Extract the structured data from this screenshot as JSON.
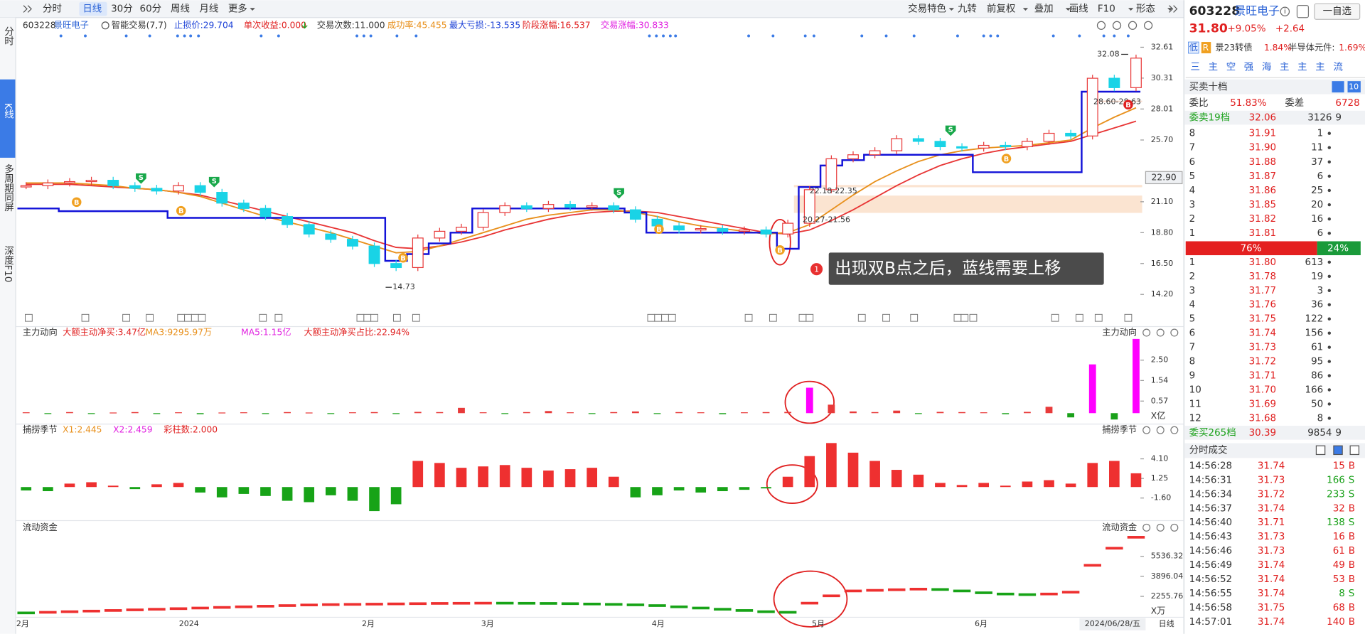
{
  "toolbar": {
    "left": [
      "分时",
      "日线",
      "30分",
      "60分",
      "周线",
      "月线",
      "更多"
    ],
    "right": [
      "交易特色",
      "九转",
      "前复权",
      "叠加",
      "画线",
      "F10",
      "形态"
    ]
  },
  "sidebar": [
    "分时",
    "K线",
    "多周期同屏",
    "深度F10"
  ],
  "info_bar": [
    {
      "text": "603228",
      "color": "#333333"
    },
    {
      "text": "景旺电子",
      "color": "#2a62d6"
    },
    {
      "text": "智能交易(7,7)",
      "color": "#333333"
    },
    {
      "text": "止损价:29.704",
      "color": "#1a3fd6"
    },
    {
      "text": "单次收益:0.000",
      "color": "#e02020"
    },
    {
      "text": "交易次数:11.000",
      "color": "#333333"
    },
    {
      "text": "成功率:45.455",
      "color": "#e8901c"
    },
    {
      "text": "最大亏损:-13.535",
      "color": "#1a3fd6"
    },
    {
      "text": "阶段涨幅:16.537",
      "color": "#e02020"
    },
    {
      "text": "交易涨幅:30.833",
      "color": "#e020e0"
    }
  ],
  "main_chart": {
    "ylim": [
      13.1,
      33.52
    ],
    "yticks": [
      {
        "value": 14.2,
        "label": "14.20"
      },
      {
        "value": 16.5,
        "label": "16.50"
      },
      {
        "value": 18.8,
        "label": "18.80"
      },
      {
        "value": 21.1,
        "label": "21.10"
      },
      {
        "value": 25.7,
        "label": "25.70"
      },
      28.01,
      30.31,
      32.61
    ],
    "closes": [
      22.3,
      22.5,
      22.6,
      22.7,
      22.3,
      22.1,
      21.9,
      22.3,
      21.8,
      21.0,
      20.6,
      20.0,
      19.4,
      18.7,
      18.3,
      17.8,
      16.5,
      16.2,
      18.4,
      18.9,
      19.2,
      20.3,
      20.8,
      20.6,
      20.9,
      20.7,
      20.8,
      20.5,
      19.8,
      19.3,
      19.0,
      19.1,
      18.9,
      19.0,
      18.7,
      19.5,
      22.0,
      24.3,
      24.6,
      24.9,
      25.8,
      25.6,
      25.2,
      25.1,
      25.3,
      25.2,
      25.6,
      26.2,
      26.0,
      30.3,
      29.6,
      31.8
    ],
    "up_color": "#e83a3a",
    "down_color": "#19d3e6",
    "ma_lines": [
      {
        "color": "#e83535",
        "values": [
          22.4,
          22.4,
          22.4,
          22.3,
          22.2,
          22.1,
          22.0,
          21.8,
          21.6,
          21.2,
          20.8,
          20.4,
          20.0,
          19.6,
          19.2,
          18.8,
          18.2,
          17.7,
          17.6,
          17.8,
          18.1,
          18.5,
          19.0,
          19.4,
          19.8,
          20.1,
          20.3,
          20.4,
          20.4,
          20.3,
          20.0,
          19.7,
          19.4,
          19.1,
          18.8,
          18.7,
          19.0,
          19.7,
          20.5,
          21.4,
          22.3,
          23.1,
          23.8,
          24.3,
          24.7,
          25.0,
          25.2,
          25.4,
          25.6,
          26.1,
          26.6,
          27.1
        ]
      },
      {
        "color": "#e8901c",
        "values": [
          22.5,
          22.5,
          22.5,
          22.4,
          22.3,
          22.1,
          22.0,
          21.8,
          21.5,
          21.0,
          20.5,
          20.0,
          19.6,
          19.2,
          18.8,
          18.3,
          17.8,
          17.3,
          17.4,
          17.8,
          18.3,
          18.8,
          19.3,
          19.8,
          20.1,
          20.3,
          20.5,
          20.5,
          20.3,
          20.0,
          19.6,
          19.3,
          19.1,
          18.9,
          18.7,
          18.8,
          19.4,
          20.5,
          21.6,
          22.6,
          23.4,
          24.1,
          24.6,
          24.9,
          25.1,
          25.2,
          25.3,
          25.5,
          25.7,
          26.6,
          27.4,
          28.1
        ]
      }
    ],
    "stop_line": {
      "color": "#1212d8",
      "values": [
        20.6,
        20.6,
        20.4,
        20.4,
        20.4,
        20.4,
        20.4,
        19.9,
        19.9,
        19.9,
        19.9,
        19.9,
        19.9,
        19.9,
        19.9,
        19.9,
        19.9,
        16.7,
        17.2,
        18.0,
        18.8,
        20.6,
        20.6,
        20.6,
        20.6,
        20.6,
        20.6,
        20.6,
        20.3,
        18.8,
        18.8,
        18.8,
        18.8,
        18.8,
        18.8,
        17.6,
        22.2,
        23.8,
        24.2,
        24.6,
        24.6,
        24.6,
        24.6,
        24.6,
        23.3,
        23.3,
        23.3,
        23.3,
        23.3,
        29.3,
        29.3,
        29.3
      ]
    },
    "zones": [
      {
        "label": "22.18-22.35",
        "low": 22.18,
        "high": 22.35
      },
      {
        "label": "20.27-21.56",
        "low": 20.27,
        "high": 21.56
      },
      {
        "label": "28.60-28.63",
        "low": 28.6,
        "high": 28.63
      }
    ],
    "high": {
      "value": 32.08,
      "label": "32.08"
    },
    "low": {
      "value": 14.73,
      "label": "14.73"
    },
    "cursor_price": {
      "value": 22.9,
      "label": "22.90"
    },
    "buy_signal": "B",
    "sell_signal": "S",
    "callout": {
      "number": "1",
      "text": "出现双B点之后，蓝线需要上移"
    }
  },
  "x_axis": [
    "2月",
    "2024",
    "2月",
    "3月",
    "4月",
    "5月",
    "6月",
    "2024/06/28/五",
    "日线"
  ],
  "flow_panel": {
    "title": "主力动向",
    "indicators": [
      {
        "text": "大额主动净买:3.47亿",
        "color": "#e02020"
      },
      {
        "text": "MA3:9295.97万",
        "color": "#e8901c"
      },
      {
        "text": "MA5:1.15亿",
        "color": "#e020e0"
      },
      {
        "text": "大额主动净买占比:22.94%",
        "color": "#e02020"
      }
    ],
    "unit": "X亿",
    "ylim": [
      -0.35,
      3.55
    ],
    "yticks": [
      0.57,
      1.54,
      {
        "value": 2.5,
        "label": "2.50"
      }
    ],
    "values": [
      0.04,
      -0.03,
      0.05,
      -0.04,
      0.03,
      0.05,
      -0.03,
      0.04,
      -0.05,
      0.03,
      0.04,
      -0.04,
      0.05,
      0.03,
      -0.03,
      0.04,
      0.05,
      -0.04,
      0.06,
      0.05,
      0.25,
      0.04,
      -0.04,
      0.05,
      0.1,
      0.04,
      -0.03,
      0.05,
      0.08,
      -0.04,
      0.05,
      0.04,
      -0.05,
      0.04,
      0.05,
      0.06,
      1.2,
      0.4,
      0.08,
      0.05,
      0.12,
      -0.04,
      0.06,
      0.05,
      0.04,
      -0.05,
      0.06,
      0.3,
      -0.2,
      2.3,
      -0.3,
      3.5
    ],
    "colors": {
      "up": "#e83a3a",
      "down": "#1aa11a",
      "strong": "#ff00ff"
    }
  },
  "capture_panel": {
    "title": "捕捞季节",
    "indicators": [
      {
        "text": "X1:2.445",
        "color": "#e8901c"
      },
      {
        "text": "X2:2.459",
        "color": "#e020e0"
      },
      {
        "text": "彩柱数:2.000",
        "color": "#e02020"
      }
    ],
    "ylim": [
      -4.51,
      7.77
    ],
    "yticks": [
      {
        "value": -1.6,
        "label": "-1.60"
      },
      1.25,
      {
        "value": 4.1,
        "label": "4.10"
      }
    ],
    "values": [
      -0.5,
      -0.6,
      0.5,
      0.7,
      0.2,
      -0.3,
      0.4,
      0.6,
      -0.8,
      -1.5,
      -1.0,
      -1.3,
      -2.0,
      -2.2,
      -1.2,
      -2.0,
      -3.5,
      -2.5,
      3.8,
      3.5,
      2.8,
      3.0,
      3.2,
      2.8,
      2.4,
      2.6,
      2.8,
      1.5,
      -1.5,
      -1.2,
      -0.5,
      -0.8,
      -0.6,
      -0.4,
      -0.2,
      1.5,
      4.5,
      6.4,
      5.0,
      3.8,
      2.5,
      1.8,
      0.6,
      0.3,
      0.6,
      0.2,
      0.8,
      1.0,
      0.5,
      3.5,
      3.8,
      2.0
    ],
    "colors": {
      "up": "#ee3030",
      "down": "#17a317"
    }
  },
  "liquidity_panel": {
    "title": "流动资金",
    "unit": "X万",
    "ylim": [
      615,
      7604
    ],
    "yticks": [
      2255.76,
      3896.04,
      5536.32
    ],
    "values": [
      900,
      950,
      1000,
      1050,
      1100,
      1150,
      1200,
      1250,
      1300,
      1350,
      1400,
      1450,
      1500,
      1550,
      1580,
      1600,
      1620,
      1640,
      1660,
      1680,
      1690,
      1700,
      1700,
      1690,
      1680,
      1660,
      1630,
      1600,
      1560,
      1500,
      1400,
      1300,
      1200,
      1100,
      1000,
      950,
      1700,
      2300,
      2700,
      2750,
      2800,
      2850,
      2820,
      2700,
      2550,
      2450,
      2400,
      2450,
      2600,
      4800,
      6200,
      7100
    ],
    "colors": {
      "up": "#ee3030",
      "down": "#17a317"
    }
  },
  "quote": {
    "code": "603228",
    "name": "景旺电子",
    "info": "i",
    "watch": "一自选",
    "price": "31.80",
    "change_pct": "+9.05%",
    "change": "+2.64",
    "tags": [
      "低",
      "R",
      "景23转债",
      "1.84%",
      "半导体元件:",
      "1.69%"
    ],
    "tabs": [
      "三",
      "主",
      "空",
      "强",
      "海",
      "主",
      "主",
      "主",
      "流"
    ],
    "book_title": "买卖十档",
    "book_tabs": [
      "10"
    ],
    "ratio": [
      "委比",
      "51.83%",
      "委差",
      "6728"
    ],
    "sell_total": [
      "委卖19档",
      "32.06",
      "3126",
      "9"
    ],
    "sells": [
      [
        "8",
        "31.91",
        "1"
      ],
      [
        "7",
        "31.90",
        "11"
      ],
      [
        "6",
        "31.88",
        "37"
      ],
      [
        "5",
        "31.87",
        "6"
      ],
      [
        "4",
        "31.86",
        "25"
      ],
      [
        "3",
        "31.85",
        "20"
      ],
      [
        "2",
        "31.82",
        "16"
      ],
      [
        "1",
        "31.81",
        "6"
      ]
    ],
    "balance": [
      "76%",
      "24%"
    ],
    "buys": [
      [
        "1",
        "31.80",
        "613"
      ],
      [
        "2",
        "31.78",
        "19"
      ],
      [
        "3",
        "31.77",
        "3"
      ],
      [
        "4",
        "31.76",
        "36"
      ],
      [
        "5",
        "31.75",
        "122"
      ],
      [
        "6",
        "31.74",
        "156"
      ],
      [
        "7",
        "31.73",
        "61"
      ],
      [
        "8",
        "31.72",
        "95"
      ],
      [
        "9",
        "31.71",
        "86"
      ],
      [
        "10",
        "31.70",
        "166"
      ],
      [
        "11",
        "31.69",
        "50"
      ],
      [
        "12",
        "31.68",
        "8"
      ]
    ],
    "buy_total": [
      "委买265档",
      "30.39",
      "9854",
      "9"
    ]
  },
  "trades": {
    "title": "分时成交",
    "rows": [
      [
        "14:56:28",
        "31.74",
        "15",
        "B"
      ],
      [
        "14:56:31",
        "31.73",
        "166",
        "S"
      ],
      [
        "14:56:34",
        "31.72",
        "233",
        "S"
      ],
      [
        "14:56:37",
        "31.74",
        "32",
        "B"
      ],
      [
        "14:56:40",
        "31.71",
        "138",
        "S"
      ],
      [
        "14:56:43",
        "31.73",
        "16",
        "B"
      ],
      [
        "14:56:46",
        "31.73",
        "61",
        "B"
      ],
      [
        "14:56:49",
        "31.74",
        "49",
        "B"
      ],
      [
        "14:56:52",
        "31.74",
        "53",
        "B"
      ],
      [
        "14:56:55",
        "31.74",
        "8",
        "S"
      ],
      [
        "14:56:58",
        "31.75",
        "68",
        "B"
      ],
      [
        "14:57:01",
        "31.74",
        "140",
        "B"
      ]
    ]
  }
}
